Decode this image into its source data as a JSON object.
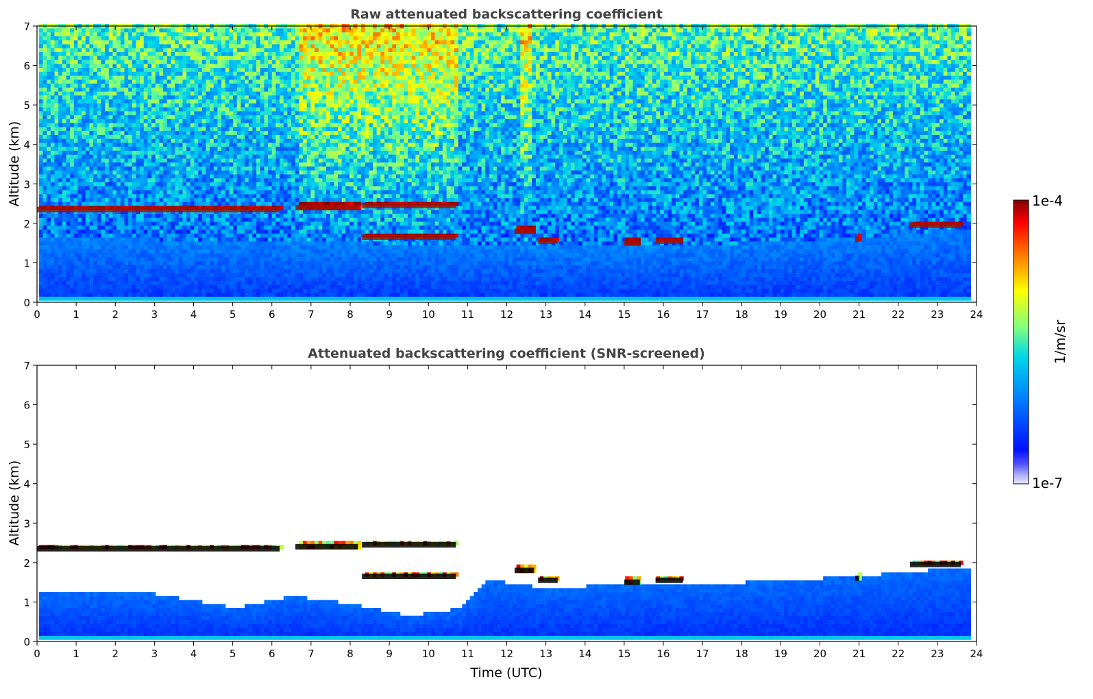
{
  "chart_data": [
    {
      "type": "heatmap",
      "title": "Raw attenuated backscattering coefficient",
      "xlabel": "",
      "ylabel": "Altitude (km)",
      "xlim": [
        0,
        24
      ],
      "ylim": [
        0,
        7
      ],
      "xticks": [
        "0",
        "1",
        "2",
        "3",
        "4",
        "5",
        "6",
        "7",
        "8",
        "9",
        "10",
        "11",
        "12",
        "13",
        "14",
        "15",
        "16",
        "17",
        "18",
        "19",
        "20",
        "21",
        "22",
        "23",
        "24"
      ],
      "yticks": [
        "0",
        "1",
        "2",
        "3",
        "4",
        "5",
        "6",
        "7"
      ],
      "data_coverage_hours": [
        0,
        23.8
      ],
      "features": {
        "cloud_layers": [
          {
            "t_start": 0.0,
            "t_end": 6.2,
            "altitude_km": 2.35
          },
          {
            "t_start": 6.6,
            "t_end": 8.2,
            "altitude_km": 2.4
          },
          {
            "t_start": 8.3,
            "t_end": 10.7,
            "altitude_km": 2.45
          },
          {
            "t_start": 8.3,
            "t_end": 10.7,
            "altitude_km": 1.65
          },
          {
            "t_start": 12.2,
            "t_end": 12.7,
            "altitude_km": 1.8
          },
          {
            "t_start": 12.8,
            "t_end": 13.3,
            "altitude_km": 1.55
          },
          {
            "t_start": 15.0,
            "t_end": 15.4,
            "altitude_km": 1.5
          },
          {
            "t_start": 15.8,
            "t_end": 16.5,
            "altitude_km": 1.55
          },
          {
            "t_start": 20.9,
            "t_end": 21.0,
            "altitude_km": 1.6
          },
          {
            "t_start": 22.3,
            "t_end": 23.6,
            "altitude_km": 1.95
          }
        ],
        "boundary_layer_top_km": [
          [
            0,
            1.6
          ],
          [
            6,
            1.5
          ],
          [
            11,
            1.4
          ],
          [
            14,
            1.35
          ],
          [
            18,
            1.45
          ],
          [
            21,
            1.6
          ],
          [
            23.8,
            1.85
          ]
        ],
        "high_noise_periods": [
          [
            6.6,
            10.7
          ],
          [
            12.3,
            12.6
          ]
        ]
      }
    },
    {
      "type": "heatmap",
      "title": "Attenuated backscattering coefficient (SNR-screened)",
      "xlabel": "Time (UTC)",
      "ylabel": "Altitude (km)",
      "xlim": [
        0,
        24
      ],
      "ylim": [
        0,
        7
      ],
      "xticks": [
        "0",
        "1",
        "2",
        "3",
        "4",
        "5",
        "6",
        "7",
        "8",
        "9",
        "10",
        "11",
        "12",
        "13",
        "14",
        "15",
        "16",
        "17",
        "18",
        "19",
        "20",
        "21",
        "22",
        "23",
        "24"
      ],
      "yticks": [
        "0",
        "1",
        "2",
        "3",
        "4",
        "5",
        "6",
        "7"
      ],
      "data_coverage_hours": [
        0,
        23.8
      ],
      "features": {
        "screened_aerosol_top_km": [
          [
            0,
            1.2
          ],
          [
            3,
            1.15
          ],
          [
            5,
            0.8
          ],
          [
            6.5,
            1.1
          ],
          [
            8,
            0.9
          ],
          [
            9.5,
            0.6
          ],
          [
            10.8,
            0.8
          ],
          [
            11.5,
            1.5
          ],
          [
            13,
            1.3
          ],
          [
            14,
            1.35
          ],
          [
            18,
            1.45
          ],
          [
            21,
            1.6
          ],
          [
            23.8,
            1.85
          ]
        ]
      }
    }
  ],
  "colorbar": {
    "label": "1/m/sr",
    "min_label": "1e-7",
    "max_label": "1e-4",
    "scale": "log",
    "colors": [
      "#e8e8ff",
      "#0010ff",
      "#0080ff",
      "#00d8e8",
      "#80ff80",
      "#ffff00",
      "#ff8000",
      "#ff0000",
      "#800000"
    ]
  }
}
